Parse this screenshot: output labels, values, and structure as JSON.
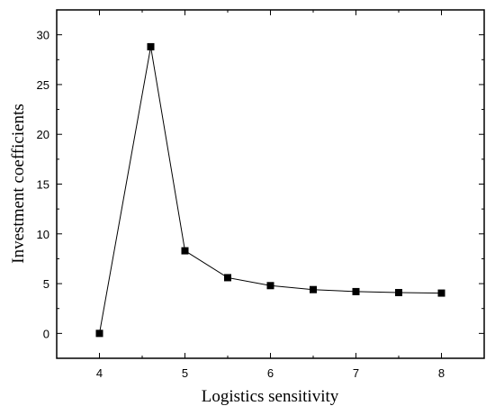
{
  "chart_data": {
    "type": "line",
    "title": "",
    "xlabel": "Logistics sensitivity",
    "ylabel": "Investment coefficients",
    "xlim": [
      3.5,
      8.5
    ],
    "ylim": [
      -2.5,
      32.5
    ],
    "x_ticks": [
      4,
      5,
      6,
      7,
      8
    ],
    "y_ticks": [
      0,
      5,
      10,
      15,
      20,
      25,
      30
    ],
    "grid": false,
    "legend": "none",
    "series": [
      {
        "marker": "square",
        "color": "#000000",
        "x": [
          4.0,
          4.6,
          5.0,
          5.5,
          6.0,
          6.5,
          7.0,
          7.5,
          8.0
        ],
        "y": [
          0.0,
          28.8,
          8.3,
          5.6,
          4.8,
          4.4,
          4.2,
          4.1,
          4.05
        ]
      }
    ]
  }
}
